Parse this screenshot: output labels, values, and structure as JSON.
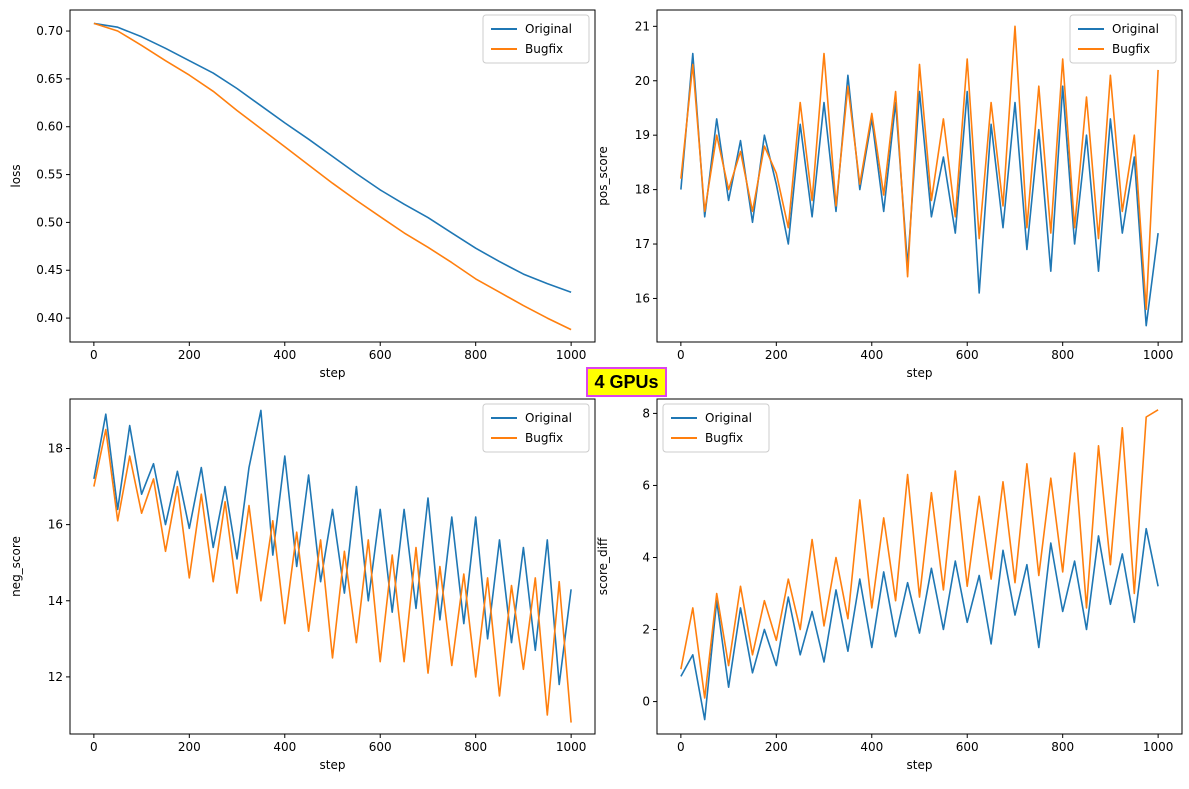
{
  "badge": {
    "label": "4 GPUs",
    "background": "#ffff00",
    "border": "#dd44ee"
  },
  "colors": {
    "Original": "#1f77b4",
    "Bugfix": "#ff7f0e"
  },
  "chart_data": [
    {
      "type": "line",
      "xlabel": "step",
      "ylabel": "loss",
      "xlim": [
        -50,
        1050
      ],
      "ylim": [
        0.375,
        0.722
      ],
      "xticks": [
        0,
        200,
        400,
        600,
        800,
        1000
      ],
      "yticks": [
        0.4,
        0.45,
        0.5,
        0.55,
        0.6,
        0.65,
        0.7
      ],
      "ytick_decimals": 2,
      "legend": "upper right",
      "grid": false,
      "series": [
        {
          "name": "Original",
          "x": [
            0,
            50,
            100,
            150,
            200,
            250,
            300,
            350,
            400,
            450,
            500,
            550,
            600,
            650,
            700,
            750,
            800,
            850,
            900,
            950,
            1000
          ],
          "values": [
            0.708,
            0.704,
            0.694,
            0.682,
            0.669,
            0.656,
            0.64,
            0.622,
            0.604,
            0.587,
            0.569,
            0.551,
            0.534,
            0.519,
            0.505,
            0.489,
            0.473,
            0.459,
            0.446,
            0.436,
            0.427
          ]
        },
        {
          "name": "Bugfix",
          "x": [
            0,
            50,
            100,
            150,
            200,
            250,
            300,
            350,
            400,
            450,
            500,
            550,
            600,
            650,
            700,
            750,
            800,
            850,
            900,
            950,
            1000
          ],
          "values": [
            0.708,
            0.7,
            0.685,
            0.669,
            0.654,
            0.637,
            0.617,
            0.598,
            0.579,
            0.56,
            0.541,
            0.523,
            0.506,
            0.489,
            0.474,
            0.458,
            0.441,
            0.427,
            0.413,
            0.4,
            0.388
          ]
        }
      ]
    },
    {
      "type": "line",
      "xlabel": "step",
      "ylabel": "pos_score",
      "xlim": [
        -50,
        1050
      ],
      "ylim": [
        15.2,
        21.3
      ],
      "xticks": [
        0,
        200,
        400,
        600,
        800,
        1000
      ],
      "yticks": [
        16,
        17,
        18,
        19,
        20,
        21
      ],
      "ytick_decimals": 0,
      "legend": "upper right",
      "grid": false,
      "series": [
        {
          "name": "Original",
          "x": [
            0,
            25,
            50,
            75,
            100,
            125,
            150,
            175,
            200,
            225,
            250,
            275,
            300,
            325,
            350,
            375,
            400,
            425,
            450,
            475,
            500,
            525,
            550,
            575,
            600,
            625,
            650,
            675,
            700,
            725,
            750,
            775,
            800,
            825,
            850,
            875,
            900,
            925,
            950,
            975,
            1000
          ],
          "values": [
            18.0,
            20.5,
            17.5,
            19.3,
            17.8,
            18.9,
            17.4,
            19.0,
            18.1,
            17.0,
            19.2,
            17.5,
            19.6,
            17.6,
            20.1,
            18.0,
            19.3,
            17.6,
            19.6,
            16.6,
            19.8,
            17.5,
            18.6,
            17.2,
            19.8,
            16.1,
            19.2,
            17.3,
            19.6,
            16.9,
            19.1,
            16.5,
            19.9,
            17.0,
            19.0,
            16.5,
            19.3,
            17.2,
            18.6,
            15.5,
            17.2
          ]
        },
        {
          "name": "Bugfix",
          "x": [
            0,
            25,
            50,
            75,
            100,
            125,
            150,
            175,
            200,
            225,
            250,
            275,
            300,
            325,
            350,
            375,
            400,
            425,
            450,
            475,
            500,
            525,
            550,
            575,
            600,
            625,
            650,
            675,
            700,
            725,
            750,
            775,
            800,
            825,
            850,
            875,
            900,
            925,
            950,
            975,
            1000
          ],
          "values": [
            18.2,
            20.3,
            17.6,
            19.0,
            18.0,
            18.7,
            17.6,
            18.8,
            18.3,
            17.3,
            19.6,
            17.8,
            20.5,
            17.7,
            19.9,
            18.1,
            19.4,
            17.9,
            19.8,
            16.4,
            20.3,
            17.8,
            19.3,
            17.5,
            20.4,
            17.1,
            19.6,
            17.7,
            21.0,
            17.3,
            19.9,
            17.2,
            20.4,
            17.3,
            19.7,
            17.1,
            20.1,
            17.6,
            19.0,
            15.8,
            20.2
          ]
        }
      ]
    },
    {
      "type": "line",
      "xlabel": "step",
      "ylabel": "neg_score",
      "xlim": [
        -50,
        1050
      ],
      "ylim": [
        10.5,
        19.3
      ],
      "xticks": [
        0,
        200,
        400,
        600,
        800,
        1000
      ],
      "yticks": [
        12,
        14,
        16,
        18
      ],
      "ytick_decimals": 0,
      "legend": "upper right",
      "grid": false,
      "series": [
        {
          "name": "Original",
          "x": [
            0,
            25,
            50,
            75,
            100,
            125,
            150,
            175,
            200,
            225,
            250,
            275,
            300,
            325,
            350,
            375,
            400,
            425,
            450,
            475,
            500,
            525,
            550,
            575,
            600,
            625,
            650,
            675,
            700,
            725,
            750,
            775,
            800,
            825,
            850,
            875,
            900,
            925,
            950,
            975,
            1000
          ],
          "values": [
            17.2,
            18.9,
            16.4,
            18.6,
            16.8,
            17.6,
            16.0,
            17.4,
            15.9,
            17.5,
            15.4,
            17.0,
            15.1,
            17.5,
            19.0,
            15.2,
            17.8,
            14.9,
            17.3,
            14.5,
            16.4,
            14.2,
            17.0,
            14.0,
            16.4,
            13.7,
            16.4,
            13.8,
            16.7,
            13.5,
            16.2,
            13.4,
            16.2,
            13.0,
            15.6,
            12.9,
            15.4,
            12.7,
            15.6,
            11.8,
            14.3
          ]
        },
        {
          "name": "Bugfix",
          "x": [
            0,
            25,
            50,
            75,
            100,
            125,
            150,
            175,
            200,
            225,
            250,
            275,
            300,
            325,
            350,
            375,
            400,
            425,
            450,
            475,
            500,
            525,
            550,
            575,
            600,
            625,
            650,
            675,
            700,
            725,
            750,
            775,
            800,
            825,
            850,
            875,
            900,
            925,
            950,
            975,
            1000
          ],
          "values": [
            17.0,
            18.5,
            16.1,
            17.8,
            16.3,
            17.2,
            15.3,
            17.0,
            14.6,
            16.8,
            14.5,
            16.6,
            14.2,
            16.5,
            14.0,
            16.1,
            13.4,
            15.8,
            13.2,
            15.6,
            12.5,
            15.3,
            12.9,
            15.6,
            12.4,
            15.2,
            12.4,
            15.4,
            12.1,
            14.9,
            12.3,
            14.7,
            12.0,
            14.6,
            11.5,
            14.4,
            12.2,
            14.6,
            11.0,
            14.5,
            10.8
          ]
        }
      ]
    },
    {
      "type": "line",
      "xlabel": "step",
      "ylabel": "score_diff",
      "xlim": [
        -50,
        1050
      ],
      "ylim": [
        -0.9,
        8.4
      ],
      "xticks": [
        0,
        200,
        400,
        600,
        800,
        1000
      ],
      "yticks": [
        0,
        2,
        4,
        6,
        8
      ],
      "ytick_decimals": 0,
      "legend": "upper left",
      "grid": false,
      "series": [
        {
          "name": "Original",
          "x": [
            0,
            25,
            50,
            75,
            100,
            125,
            150,
            175,
            200,
            225,
            250,
            275,
            300,
            325,
            350,
            375,
            400,
            425,
            450,
            475,
            500,
            525,
            550,
            575,
            600,
            625,
            650,
            675,
            700,
            725,
            750,
            775,
            800,
            825,
            850,
            875,
            900,
            925,
            950,
            975,
            1000
          ],
          "values": [
            0.7,
            1.3,
            -0.5,
            2.8,
            0.4,
            2.6,
            0.8,
            2.0,
            1.0,
            2.9,
            1.3,
            2.5,
            1.1,
            3.1,
            1.4,
            3.4,
            1.5,
            3.6,
            1.8,
            3.3,
            1.9,
            3.7,
            2.0,
            3.9,
            2.2,
            3.5,
            1.6,
            4.2,
            2.4,
            3.8,
            1.5,
            4.4,
            2.5,
            3.9,
            2.0,
            4.6,
            2.7,
            4.1,
            2.2,
            4.8,
            3.2
          ]
        },
        {
          "name": "Bugfix",
          "x": [
            0,
            25,
            50,
            75,
            100,
            125,
            150,
            175,
            200,
            225,
            250,
            275,
            300,
            325,
            350,
            375,
            400,
            425,
            450,
            475,
            500,
            525,
            550,
            575,
            600,
            625,
            650,
            675,
            700,
            725,
            750,
            775,
            800,
            825,
            850,
            875,
            900,
            925,
            950,
            975,
            1000
          ],
          "values": [
            0.9,
            2.6,
            0.1,
            3.0,
            1.0,
            3.2,
            1.3,
            2.8,
            1.7,
            3.4,
            2.0,
            4.5,
            2.1,
            4.0,
            2.3,
            5.6,
            2.6,
            5.1,
            2.8,
            6.3,
            2.9,
            5.8,
            3.1,
            6.4,
            3.2,
            5.7,
            3.4,
            6.1,
            3.3,
            6.6,
            3.5,
            6.2,
            3.6,
            6.9,
            2.6,
            7.1,
            3.8,
            7.6,
            3.0,
            7.9,
            8.1
          ]
        }
      ]
    }
  ]
}
